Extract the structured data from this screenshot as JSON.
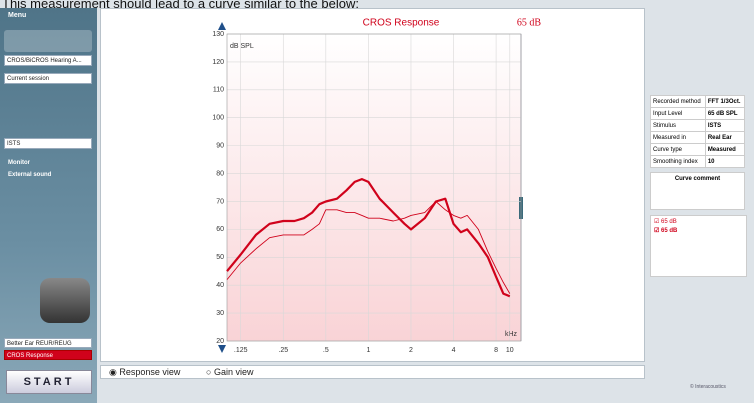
{
  "header_text": "This measurement should lead to a curve similar to the below:",
  "sidebar": {
    "menu": "Menu",
    "protocol": "CROS/BiCROS Hearing A...",
    "session": "Current session",
    "stimulus": "ISTS",
    "monitor": "Monitor",
    "external_sound": "External sound",
    "steps": [
      "Better Ear REUR/REUG",
      "CROS Response"
    ],
    "start": "START"
  },
  "chart_data": {
    "type": "line",
    "title": "CROS Response",
    "level_label": "65 dB",
    "y_label": "dB SPL",
    "x_label": "kHz",
    "x_scale": "log",
    "grid": true,
    "xlim": [
      0.1,
      12
    ],
    "ylim": [
      20,
      130
    ],
    "xticks": [
      {
        "value": 0.125,
        "label": ".125"
      },
      {
        "value": 0.25,
        "label": ".25"
      },
      {
        "value": 0.5,
        "label": ".5"
      },
      1,
      2,
      4,
      8,
      10
    ],
    "yticks": [
      20,
      30,
      40,
      50,
      60,
      70,
      80,
      90,
      100,
      110,
      120,
      130
    ],
    "x": [
      0.1,
      0.125,
      0.16,
      0.2,
      0.25,
      0.3,
      0.35,
      0.4,
      0.45,
      0.5,
      0.6,
      0.7,
      0.8,
      0.9,
      1,
      1.2,
      1.5,
      1.8,
      2,
      2.5,
      3,
      3.5,
      4,
      4.5,
      5,
      6,
      7,
      8,
      9,
      10
    ],
    "series": [
      {
        "name": "65 dB",
        "color": "#d0021b",
        "values": [
          45,
          51,
          58,
          62,
          63,
          63,
          64,
          66,
          69,
          70,
          71,
          74,
          77,
          78,
          77,
          71,
          66,
          62,
          60,
          64,
          70,
          71,
          62,
          59,
          60,
          55,
          50,
          43,
          37,
          36
        ]
      },
      {
        "name": "65 dB",
        "color": "#d0021b",
        "values": [
          42,
          48,
          53,
          57,
          58,
          58,
          58,
          60,
          62,
          67,
          67,
          66,
          66,
          65,
          64,
          64,
          63,
          64,
          65,
          66,
          70,
          67,
          65,
          64,
          65,
          60,
          52,
          46,
          41,
          37
        ]
      }
    ]
  },
  "info_table": [
    [
      "Recorded method",
      "FFT 1/3Oct."
    ],
    [
      "Input Level",
      "65 dB SPL"
    ],
    [
      "Stimulus",
      "ISTS"
    ],
    [
      "Measured in",
      "Real Ear"
    ],
    [
      "Curve type",
      "Measured"
    ],
    [
      "Smoothing index",
      "10"
    ]
  ],
  "curve_comment": "Curve comment",
  "views": [
    "Response view",
    "Gain view"
  ],
  "footer": "© Interacoustics"
}
